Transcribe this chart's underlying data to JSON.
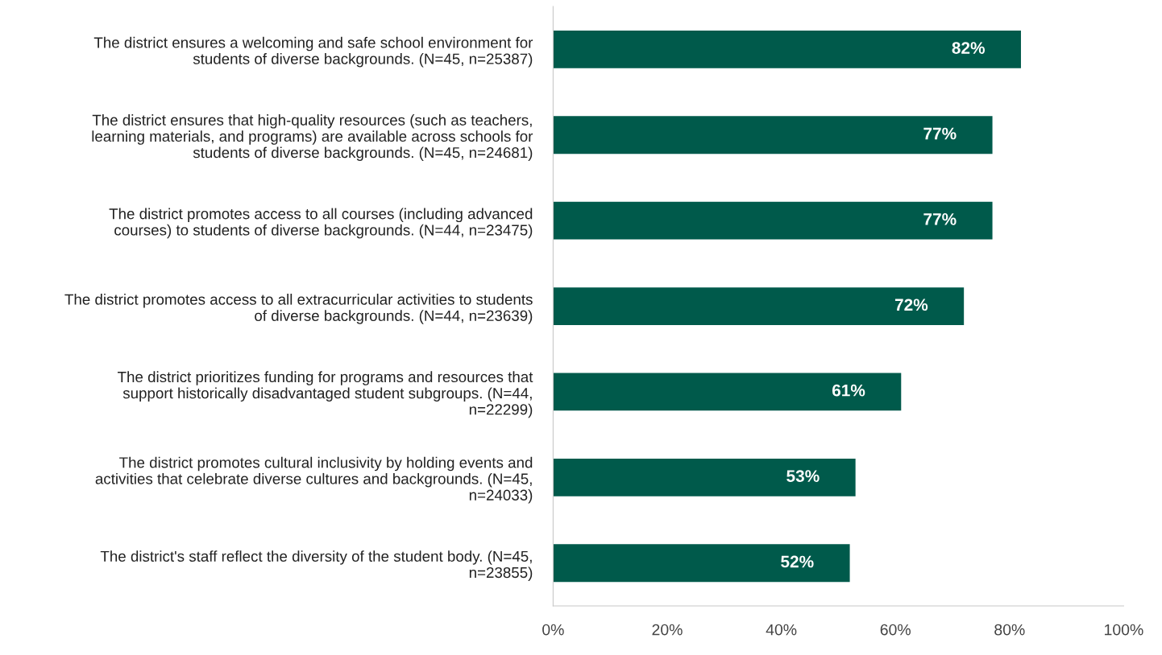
{
  "chart_data": {
    "type": "bar",
    "orientation": "horizontal",
    "categories": [
      "The district ensures a welcoming and safe school environment for\nstudents of diverse backgrounds. (N=45, n=25387)",
      "The district ensures that high-quality resources (such as teachers,\nlearning materials, and programs) are available across schools for\nstudents of diverse backgrounds. (N=45, n=24681)",
      "The district promotes access to all courses (including advanced\ncourses) to students of diverse backgrounds. (N=44, n=23475)",
      "The district promotes access to all extracurricular activities to students\nof diverse backgrounds. (N=44, n=23639)",
      "The district prioritizes funding for programs and resources that\nsupport historically disadvantaged student subgroups. (N=44,\nn=22299)",
      "The district promotes cultural inclusivity by holding events and\nactivities that celebrate diverse cultures and backgrounds. (N=45,\nn=24033)",
      "The district's staff reflect the diversity of the student body. (N=45,\nn=23855)"
    ],
    "values": [
      82,
      77,
      77,
      72,
      61,
      53,
      52
    ],
    "value_labels": [
      "82%",
      "77%",
      "77%",
      "72%",
      "61%",
      "53%",
      "52%"
    ],
    "color": "#005a4b",
    "xlim": [
      0,
      100
    ],
    "xticks": [
      {
        "value": 0,
        "label": "0%"
      },
      {
        "value": 20,
        "label": "20%"
      },
      {
        "value": 40,
        "label": "40%"
      },
      {
        "value": 60,
        "label": "60%"
      },
      {
        "value": 80,
        "label": "80%"
      },
      {
        "value": 100,
        "label": "100%"
      }
    ],
    "grid": false
  }
}
